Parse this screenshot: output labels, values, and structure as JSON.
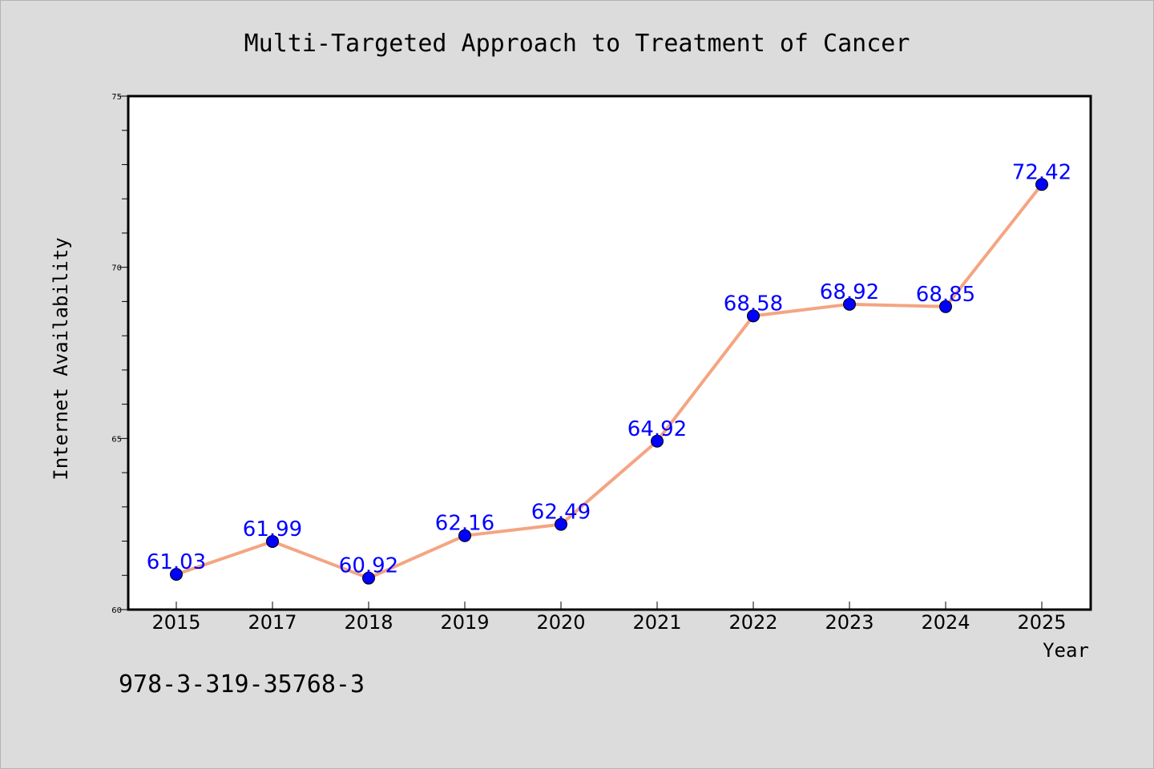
{
  "chart_data": {
    "type": "line",
    "title": "Multi-Targeted Approach to Treatment of Cancer",
    "xlabel": "Year",
    "ylabel": "Internet Availability",
    "categories": [
      "2015",
      "2017",
      "2018",
      "2019",
      "2020",
      "2021",
      "2022",
      "2023",
      "2024",
      "2025"
    ],
    "series": [
      {
        "values": [
          61.03,
          61.99,
          60.92,
          62.16,
          62.49,
          64.92,
          68.58,
          68.92,
          68.85,
          72.42
        ],
        "data_labels": [
          "61.03",
          "61.99",
          "60.92",
          "62.16",
          "62.49",
          "64.92",
          "68.58",
          "68.92",
          "68.85",
          "72.42"
        ],
        "line_color": "#f4a582",
        "marker_color": "#0000ff",
        "label_color": "#0000ff"
      }
    ],
    "ylim": [
      60,
      75
    ],
    "y_ticks": [
      "60",
      "65",
      "70",
      "75"
    ],
    "y_tick_values": [
      60,
      65,
      70,
      75
    ],
    "grid": false,
    "legend": "none"
  },
  "annotation": {
    "isbn": "978-3-319-35768-3"
  },
  "colors": {
    "background": "#dcdcdc",
    "plot_background": "#ffffff",
    "axis": "#000000"
  }
}
